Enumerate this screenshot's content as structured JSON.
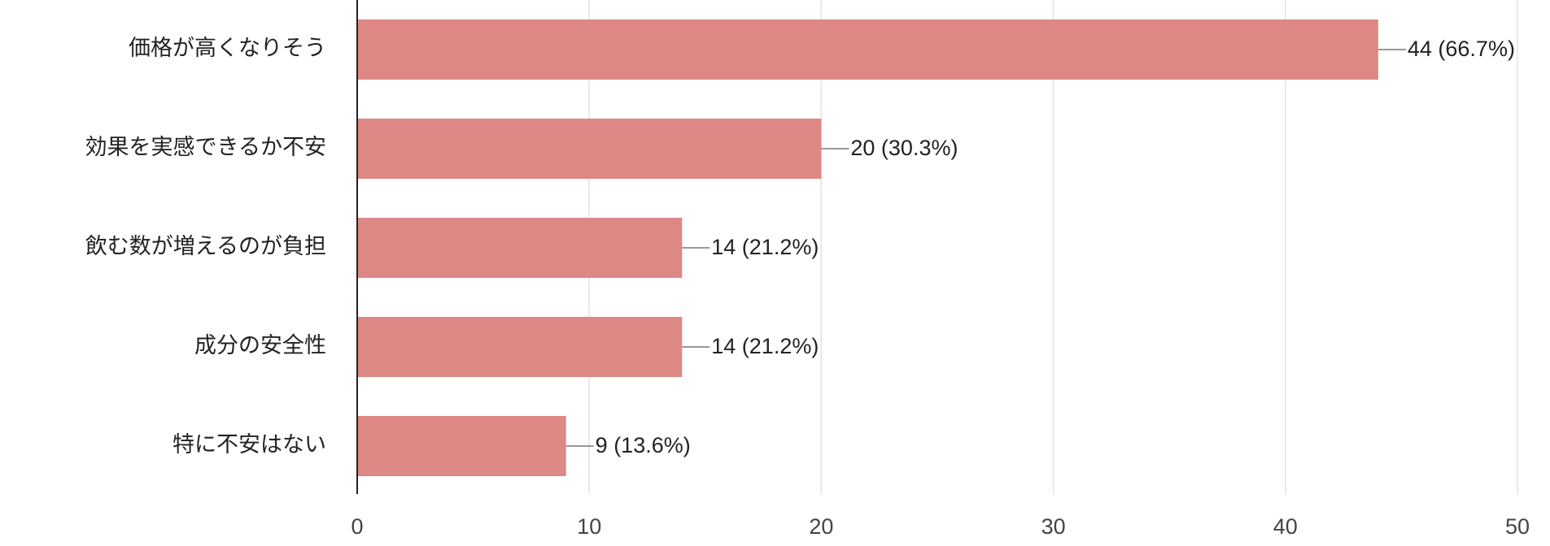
{
  "chart_data": {
    "type": "bar",
    "orientation": "horizontal",
    "categories": [
      "価格が高くなりそう",
      "効果を実感できるか不安",
      "飲む数が増えるのが負担",
      "成分の安全性",
      "特に不安はない"
    ],
    "values": [
      44,
      20,
      14,
      14,
      9
    ],
    "value_labels": [
      "44 (66.7%)",
      "20 (30.3%)",
      "14 (21.2%)",
      "14 (21.2%)",
      "9 (13.6%)"
    ],
    "color": "#dd8884",
    "xlim": [
      0,
      50
    ],
    "xticks": [
      0,
      10,
      20,
      30,
      40,
      50
    ],
    "grid": true
  }
}
